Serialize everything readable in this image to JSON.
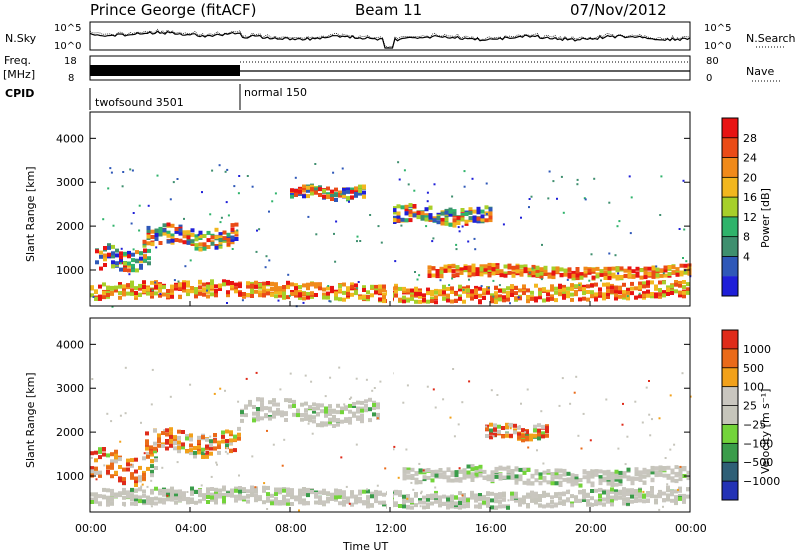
{
  "header": {
    "station": "Prince George (fitACF)",
    "beam": "Beam 11",
    "date": "07/Nov/2012"
  },
  "left_labels": {
    "nsky": "N.Sky",
    "freq": "Freq.",
    "freq_unit": "[MHz]",
    "cpid": "CPID"
  },
  "right_labels": {
    "nsearch": "N.Search",
    "nave": "Nave"
  },
  "noise_axis": {
    "left_ticks": [
      "10^5",
      "10^0"
    ],
    "right_ticks": [
      "10^5",
      "10^0"
    ]
  },
  "freq_axis": {
    "left_ticks": [
      "18",
      "8"
    ],
    "right_ticks": [
      "80",
      "0"
    ]
  },
  "cpid_segments": [
    {
      "label": "twofsound 3501",
      "start_h": 0,
      "end_h": 6
    },
    {
      "label": "normal 150",
      "start_h": 6,
      "end_h": 24
    }
  ],
  "colors": {
    "power_scale": [
      "#1f1fd8",
      "#2f58b8",
      "#3f8f6f",
      "#2fb36b",
      "#a6cf2a",
      "#f2b71f",
      "#f08a1a",
      "#ea4b17",
      "#e81313"
    ],
    "velocity_scale": [
      "#2332b5",
      "#2f5f76",
      "#3a9c4a",
      "#73d43a",
      "#c6c5bb",
      "#c9c6bf",
      "#f2a11a",
      "#ea6a19",
      "#df2b1a"
    ]
  },
  "chart_data": [
    {
      "type": "heatmap",
      "title": "",
      "xlabel": "",
      "ylabel": "Slant Range [km]",
      "xlim": [
        0,
        24
      ],
      "ylim": [
        180,
        4600
      ],
      "x_tick_labels": [
        "00:00",
        "04:00",
        "08:00",
        "12:00",
        "16:00",
        "20:00",
        "00:00"
      ],
      "y_ticks": [
        1000,
        2000,
        3000,
        4000
      ],
      "colorbar": {
        "label": "Power [dB]",
        "ticks": [
          "4",
          "8",
          "12",
          "16",
          "20",
          "24",
          "28"
        ]
      },
      "bands": [
        {
          "name": "lower-band",
          "start_h": 0.0,
          "end_h": 24.0,
          "center_km": 550,
          "spread_km": 180
        },
        {
          "name": "afternoon-band",
          "start_h": 13.5,
          "end_h": 24.0,
          "center_km": 1000,
          "spread_km": 120
        },
        {
          "name": "evening-band",
          "start_h": 0.2,
          "end_h": 2.4,
          "center_km": 1280,
          "spread_km": 250
        },
        {
          "name": "mid-arc",
          "start_h": 2.1,
          "end_h": 5.9,
          "center_km": 1800,
          "spread_km": 220
        },
        {
          "name": "morning-streak",
          "start_h": 8.0,
          "end_h": 11.0,
          "center_km": 2800,
          "spread_km": 130
        },
        {
          "name": "post-noon-descent",
          "start_h": 12.1,
          "end_h": 16.0,
          "center_km": 2300,
          "spread_km": 180
        }
      ]
    },
    {
      "type": "heatmap",
      "title": "",
      "xlabel": "Time UT",
      "ylabel": "Slant Range [km]",
      "xlim": [
        0,
        24
      ],
      "ylim": [
        180,
        4600
      ],
      "x_tick_labels": [
        "00:00",
        "04:00",
        "08:00",
        "12:00",
        "16:00",
        "20:00",
        "00:00"
      ],
      "y_ticks": [
        1000,
        2000,
        3000,
        4000
      ],
      "colorbar": {
        "label": "Velocity [m s⁻¹]",
        "ticks": [
          "1000",
          "500",
          "100",
          "25",
          "−25",
          "−100",
          "−500",
          "−1000"
        ]
      },
      "bands": [
        {
          "name": "gray-lower",
          "start_h": 0.0,
          "end_h": 24.0,
          "center_km": 550,
          "spread_km": 180
        },
        {
          "name": "gray-afternoon",
          "start_h": 12.5,
          "end_h": 24.0,
          "center_km": 1050,
          "spread_km": 170
        },
        {
          "name": "gray-morning",
          "start_h": 6.0,
          "end_h": 11.5,
          "center_km": 2500,
          "spread_km": 240
        },
        {
          "name": "evening-orange",
          "start_h": 0.0,
          "end_h": 2.6,
          "center_km": 1250,
          "spread_km": 320
        },
        {
          "name": "mid-arc-mix",
          "start_h": 2.2,
          "end_h": 5.9,
          "center_km": 1800,
          "spread_km": 250
        },
        {
          "name": "afternoon-orange",
          "start_h": 15.8,
          "end_h": 18.3,
          "center_km": 2050,
          "spread_km": 160
        }
      ]
    }
  ]
}
